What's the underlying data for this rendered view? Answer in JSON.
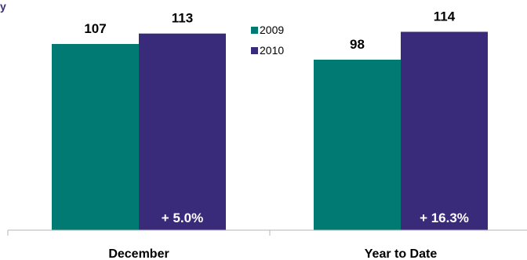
{
  "header": {
    "title_fragment": "y"
  },
  "chart_data": {
    "type": "bar",
    "categories": [
      "December",
      "Year to Date"
    ],
    "series": [
      {
        "name": "2009",
        "values": [
          107,
          98
        ],
        "color": "#007a72"
      },
      {
        "name": "2010",
        "values": [
          113,
          114
        ],
        "color": "#3a2a7a"
      }
    ],
    "changes": [
      "+ 5.0%",
      "+ 16.3%"
    ],
    "ylim": [
      0,
      125
    ],
    "legend": "top-center",
    "grid": false,
    "xlabel": "",
    "ylabel": ""
  }
}
